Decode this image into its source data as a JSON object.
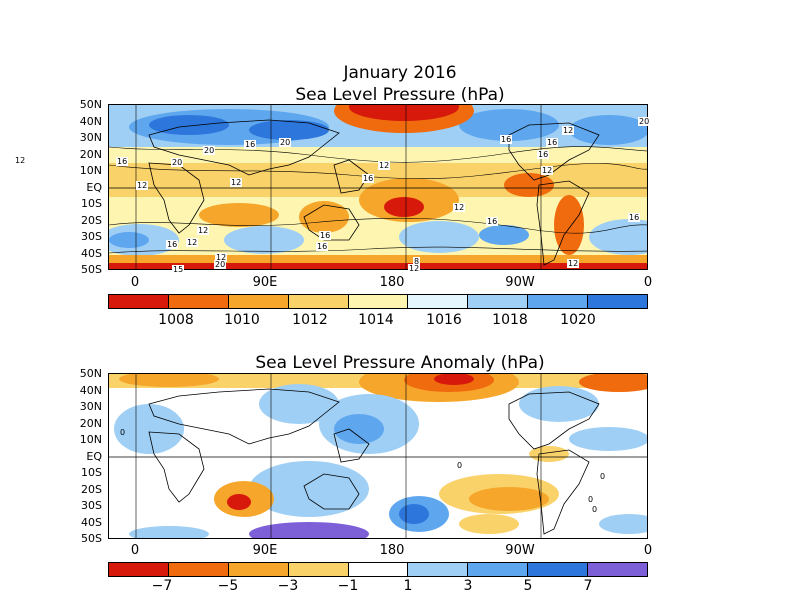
{
  "top": {
    "title": "January 2016",
    "subtitle": "Sea Level Pressure (hPa)",
    "lat_labels": [
      "50N",
      "40N",
      "30N",
      "20N",
      "10N",
      "EQ",
      "10S",
      "20S",
      "30S",
      "40S",
      "50S"
    ],
    "lon_labels": [
      "0",
      "90E",
      "180",
      "90W",
      "0"
    ],
    "colorbar_colors": [
      "#d7190c",
      "#f06b0e",
      "#f6a62a",
      "#fad26a",
      "#fdf5b0",
      "#e6f6fd",
      "#9fcff5",
      "#5ea7ef",
      "#2d76dc"
    ],
    "colorbar_labels": [
      "1008",
      "1010",
      "1012",
      "1014",
      "1016",
      "1018",
      "1020"
    ],
    "contour_labels": [
      "20",
      "16",
      "20",
      "20",
      "16",
      "12",
      "16",
      "20",
      "16",
      "12",
      "12",
      "16",
      "12",
      "12",
      "12",
      "12",
      "16",
      "12",
      "16",
      "12",
      "16",
      "16",
      "12",
      "16",
      "15",
      "8",
      "20",
      "12",
      "16",
      "12"
    ]
  },
  "bottom": {
    "title": "Sea Level Pressure Anomaly (hPa)",
    "lat_labels": [
      "50N",
      "40N",
      "30N",
      "20N",
      "10N",
      "EQ",
      "10S",
      "20S",
      "30S",
      "40S",
      "50S"
    ],
    "lon_labels": [
      "0",
      "90E",
      "180",
      "90W",
      "0"
    ],
    "colorbar_colors": [
      "#d7190c",
      "#f06b0e",
      "#f6a62a",
      "#fad26a",
      "#ffffff",
      "#9fcff5",
      "#5ea7ef",
      "#2d76dc",
      "#7d5fd8"
    ],
    "colorbar_labels": [
      "−7",
      "−5",
      "−3",
      "−1",
      "1",
      "3",
      "5",
      "7"
    ],
    "contour_labels": [
      "0",
      "0",
      "0",
      "0",
      "0"
    ]
  }
}
